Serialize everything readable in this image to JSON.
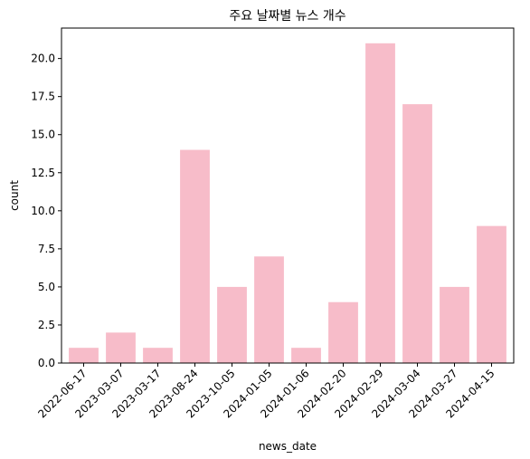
{
  "chart_data": {
    "type": "bar",
    "title": "주요 날짜별 뉴스 개수",
    "xlabel": "news_date",
    "ylabel": "count",
    "categories": [
      "2022-06-17",
      "2023-03-07",
      "2023-03-17",
      "2023-08-24",
      "2023-10-05",
      "2024-01-05",
      "2024-01-06",
      "2024-02-20",
      "2024-02-29",
      "2024-03-04",
      "2024-03-27",
      "2024-04-15"
    ],
    "values": [
      1,
      2,
      1,
      14,
      5,
      7,
      1,
      4,
      21,
      17,
      5,
      9
    ],
    "ylim": [
      0,
      22
    ],
    "yticks": [
      "0.0",
      "2.5",
      "5.0",
      "7.5",
      "10.0",
      "12.5",
      "15.0",
      "17.5",
      "20.0"
    ],
    "bar_color": "#f7bcc9",
    "grid": false,
    "legend": "none"
  }
}
